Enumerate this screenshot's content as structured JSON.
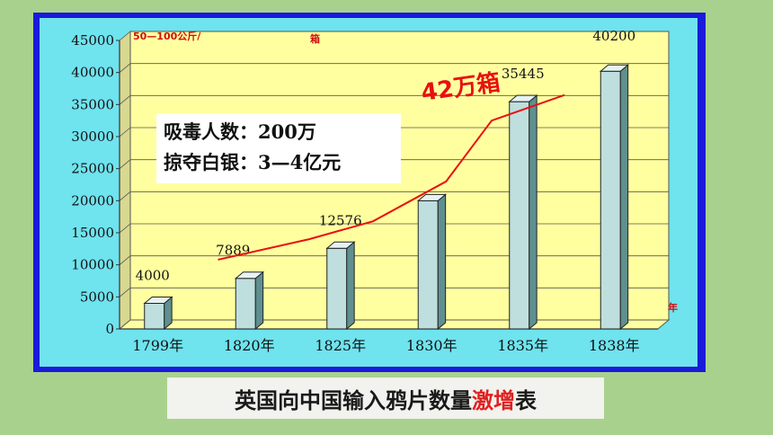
{
  "chart_data": {
    "type": "bar",
    "categories": [
      "1799年",
      "1820年",
      "1825年",
      "1830年",
      "1835年",
      "1838年"
    ],
    "values": [
      4000,
      7889,
      12576,
      20000,
      35445,
      40200
    ],
    "data_labels": [
      "4000",
      "7889",
      "12576",
      "",
      "35445",
      "40200"
    ],
    "ylim": [
      0,
      45000
    ],
    "yticks": [
      "0",
      "5000",
      "10000",
      "15000",
      "20000",
      "25000",
      "30000",
      "35000",
      "40000",
      "45000"
    ],
    "ylabel_unit": "50—100公斤/",
    "ylabel_unit2": "箱",
    "xlabel_unit": "年",
    "grid": true,
    "trend_annotation": "42万箱",
    "trend_line": [
      {
        "x": 1.0,
        "y": 10800
      },
      {
        "x": 2.0,
        "y": 14000
      },
      {
        "x": 2.7,
        "y": 16800
      },
      {
        "x": 3.5,
        "y": 23000
      },
      {
        "x": 4.0,
        "y": 32500
      },
      {
        "x": 4.8,
        "y": 36500
      }
    ]
  },
  "infobox": {
    "line1": "吸毒人数：200万",
    "line2": "掠夺白银：3—4亿元"
  },
  "caption": {
    "part1": "英国向中国输入鸦片数量",
    "highlight1": "激",
    "highlight2": "增",
    "part2": "表"
  },
  "colors": {
    "background": "#a9d18e",
    "frame": "#1a1adb",
    "panel": "#6fe3ee",
    "plot": "#ffffa0",
    "bar_front": "#bfdede",
    "bar_side": "#5f8f8f",
    "bar_top": "#e6f3f3",
    "trend": "#e81010"
  }
}
